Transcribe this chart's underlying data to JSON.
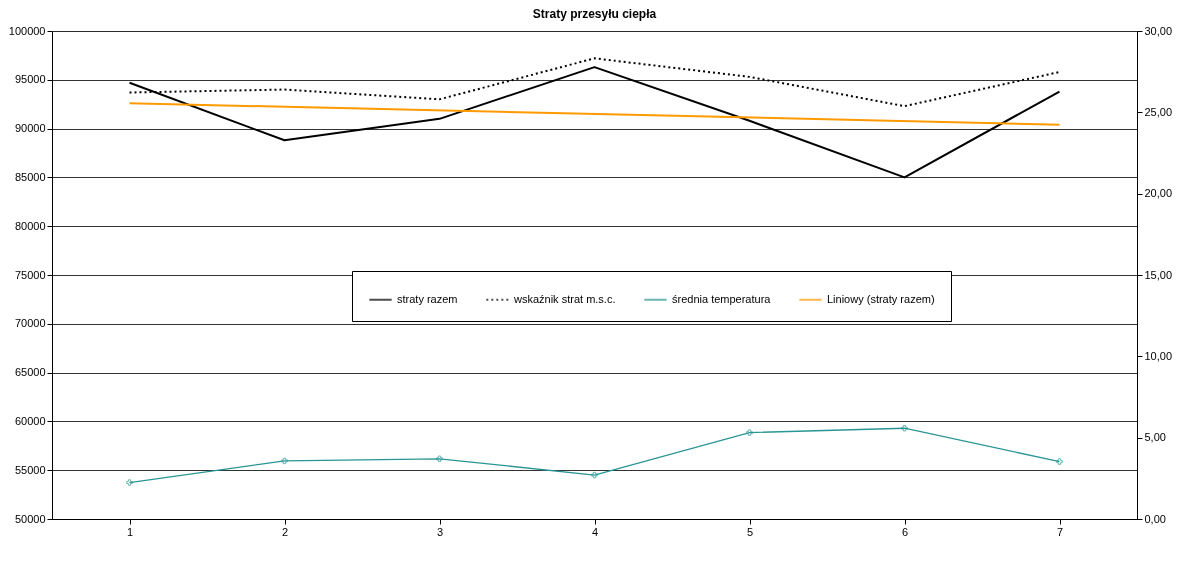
{
  "chart_data": {
    "type": "line",
    "title": "Straty przesyłu ciepła",
    "x": [
      1,
      2,
      3,
      4,
      5,
      6,
      7
    ],
    "xlim": [
      0.5,
      7.5
    ],
    "xticks": [
      1,
      2,
      3,
      4,
      5,
      6,
      7
    ],
    "ylim": [
      50000,
      100000
    ],
    "yticks": [
      50000,
      55000,
      60000,
      65000,
      70000,
      75000,
      80000,
      85000,
      90000,
      95000,
      100000
    ],
    "y2lim": [
      0,
      30
    ],
    "y2ticks": [
      {
        "value": 0,
        "label": "0,00"
      },
      {
        "value": 5,
        "label": "5,00"
      },
      {
        "value": 10,
        "label": "10,00"
      },
      {
        "value": 15,
        "label": "15,00"
      },
      {
        "value": 20,
        "label": "20,00"
      },
      {
        "value": 25,
        "label": "25,00"
      },
      {
        "value": 30,
        "label": "30,00"
      }
    ],
    "grid": "y",
    "legend": "center",
    "series": [
      {
        "name": "straty razem",
        "color": "#000000",
        "line_style": "solid",
        "marker": "none",
        "values": [
          94700,
          88800,
          91000,
          96300,
          90800,
          85000,
          93800
        ]
      },
      {
        "name": "wskaźnik strat m.s.c.",
        "color": "#000000",
        "line_style": "dotted",
        "marker": "none",
        "values": [
          93700,
          94000,
          93000,
          97200,
          95300,
          92300,
          95800
        ]
      },
      {
        "name": "średnia temperatura",
        "color": "#2a9595",
        "line_style": "solid",
        "marker": "cross",
        "axis": "y2",
        "values": [
          2.24,
          3.57,
          3.7,
          2.7,
          5.31,
          5.58,
          3.53
        ]
      },
      {
        "name": "Liniowy (straty razem)",
        "color": "#ff9900",
        "line_style": "solid",
        "marker": "none",
        "x": [
          1,
          7
        ],
        "values": [
          92600,
          90400
        ]
      }
    ]
  }
}
